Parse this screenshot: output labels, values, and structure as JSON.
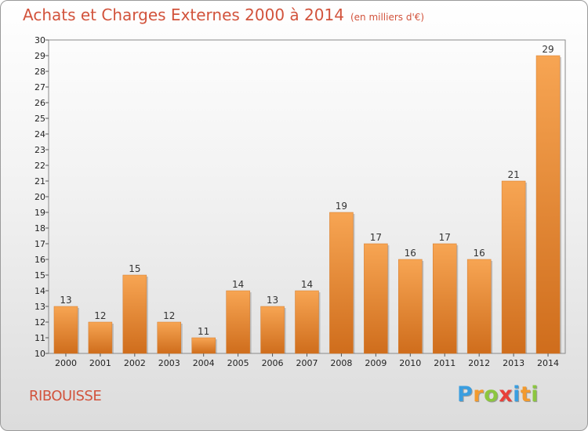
{
  "chart_data": {
    "type": "bar",
    "title": "Achats et Charges Externes 2000 à 2014",
    "subtitle": "(en milliers d'€)",
    "categories": [
      "2000",
      "2001",
      "2002",
      "2003",
      "2004",
      "2005",
      "2006",
      "2007",
      "2008",
      "2009",
      "2010",
      "2011",
      "2012",
      "2013",
      "2014"
    ],
    "values": [
      13,
      12,
      15,
      12,
      11,
      14,
      13,
      14,
      19,
      17,
      16,
      17,
      16,
      21,
      29
    ],
    "ylim": [
      10,
      30
    ],
    "ytick_step": 1,
    "xlabel": "",
    "ylabel": "",
    "grid": false,
    "bar_color": "#f08a35"
  },
  "place": "RIBOUISSE",
  "logo": {
    "letters": [
      {
        "ch": "P",
        "color": "#3a9ee0"
      },
      {
        "ch": "r",
        "color": "#f29a2e"
      },
      {
        "ch": "o",
        "color": "#8cc63f"
      },
      {
        "ch": "x",
        "color": "#e8403a"
      },
      {
        "ch": "i",
        "color": "#3a9ee0"
      },
      {
        "ch": "t",
        "color": "#f29a2e"
      },
      {
        "ch": "i",
        "color": "#8cc63f"
      }
    ]
  }
}
